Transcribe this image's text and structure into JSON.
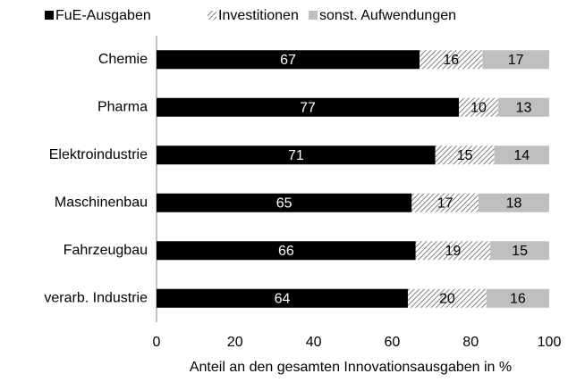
{
  "chart_data": {
    "type": "stacked_barh",
    "xlabel": "Anteil an den gesamten Innovationsausgaben in %",
    "categories": [
      "Chemie",
      "Pharma",
      "Elektroindustrie",
      "Maschinenbau",
      "Fahrzeugbau",
      "verarb. Industrie"
    ],
    "series": [
      {
        "name": "FuE-Ausgaben",
        "color": "#000000",
        "label_color": "#ffffff",
        "values": [
          67,
          77,
          71,
          65,
          66,
          64
        ]
      },
      {
        "name": "Investitionen",
        "color": "#808080",
        "hatch": true,
        "label_color": "#000000",
        "values": [
          16,
          10,
          15,
          17,
          19,
          20
        ]
      },
      {
        "name": "sonst. Aufwendungen",
        "color": "#bfbfbf",
        "label_color": "#000000",
        "values": [
          17,
          13,
          14,
          18,
          15,
          16
        ]
      }
    ],
    "xlim": [
      0,
      100
    ],
    "xticks": [
      0,
      20,
      40,
      60,
      80,
      100
    ],
    "legend": "top"
  }
}
